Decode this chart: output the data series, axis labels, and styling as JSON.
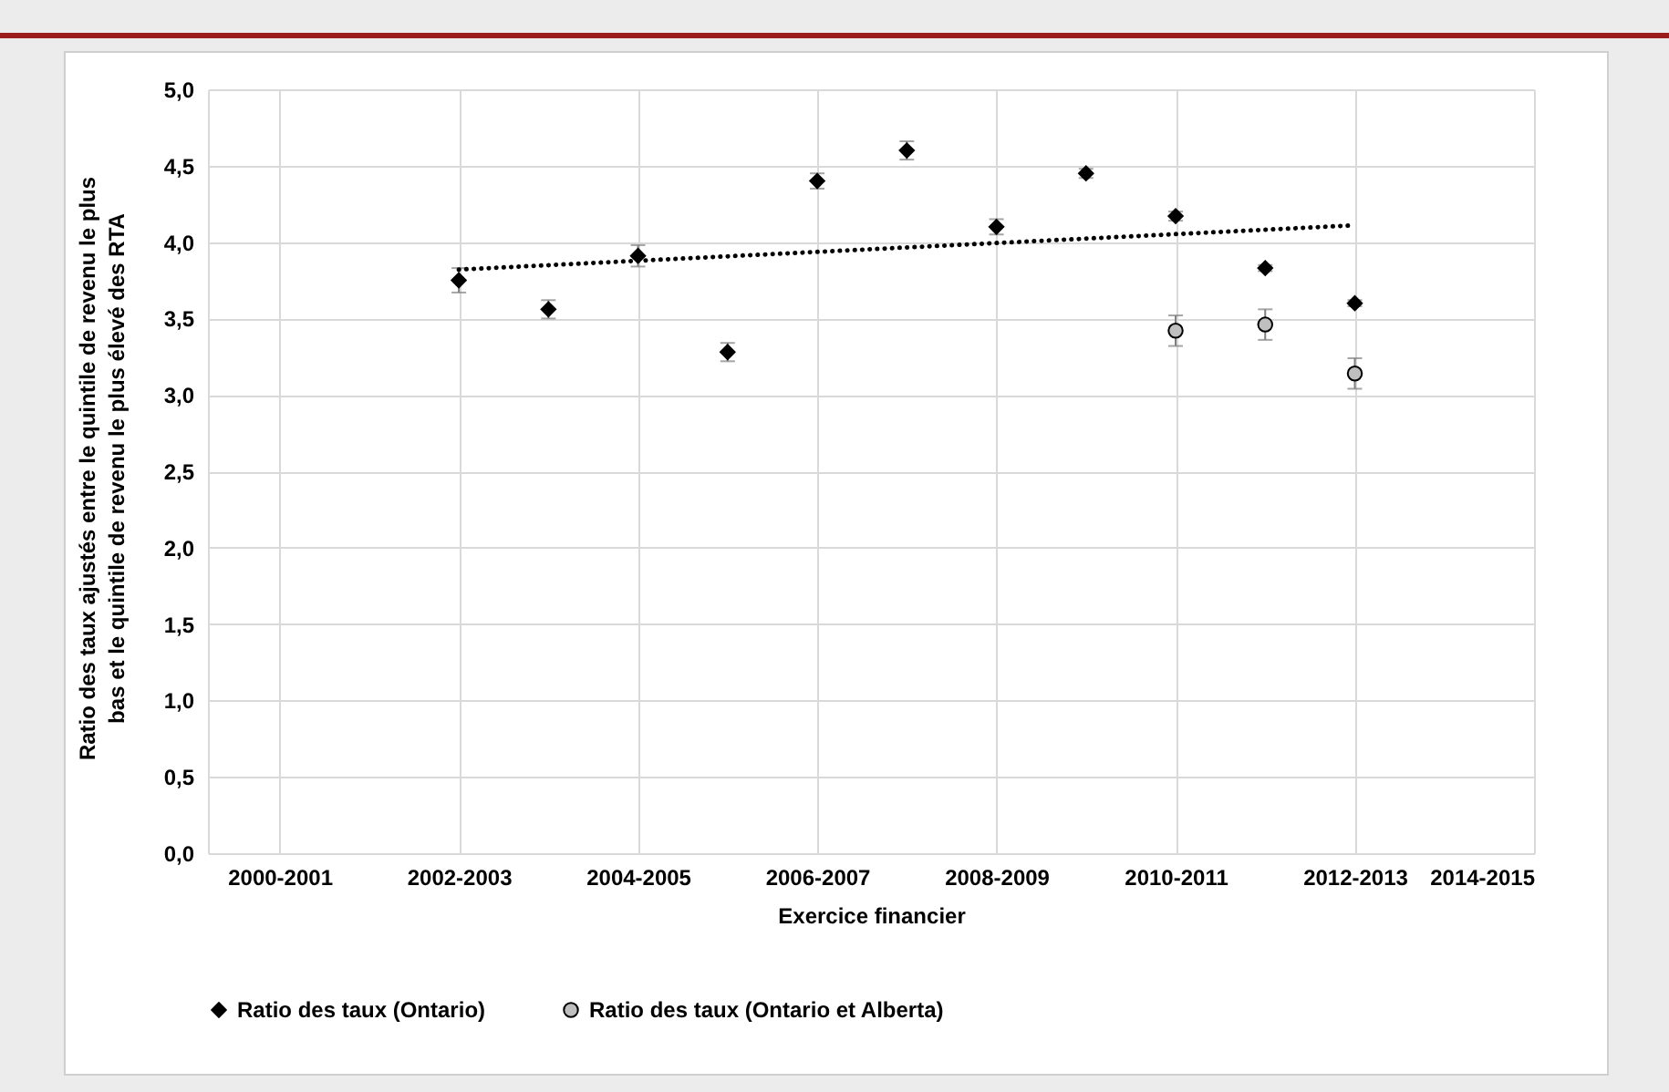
{
  "chart_data": {
    "type": "scatter",
    "xlabel": "Exercice financier",
    "ylabel": "Ratio des taux ajustés entre le quintile de revenu le plus\nbas et le quintile de revenu le plus élevé des RTA",
    "categories": [
      "2000-2001",
      null,
      "2002-2003",
      null,
      "2004-2005",
      null,
      "2006-2007",
      null,
      "2008-2009",
      null,
      "2010-2011",
      null,
      "2012-2013",
      null,
      "2014-2015"
    ],
    "ylim": [
      0,
      5
    ],
    "yticks": [
      {
        "value": 0,
        "label": "0,0"
      },
      {
        "value": 0.5,
        "label": "0,5"
      },
      {
        "value": 1,
        "label": "1,0"
      },
      {
        "value": 1.5,
        "label": "1,5"
      },
      {
        "value": 2,
        "label": "2,0"
      },
      {
        "value": 2.5,
        "label": "2,5"
      },
      {
        "value": 3,
        "label": "3,0"
      },
      {
        "value": 3.5,
        "label": "3,5"
      },
      {
        "value": 4,
        "label": "4,0"
      },
      {
        "value": 4.5,
        "label": "4,5"
      },
      {
        "value": 5,
        "label": "5,0"
      }
    ],
    "grid": true,
    "legend": "bottom",
    "series": [
      {
        "name": "Ratio des taux (Ontario)",
        "marker": "diamond",
        "color": "#000000",
        "values": [
          null,
          null,
          3.75,
          3.56,
          3.91,
          3.28,
          4.4,
          4.6,
          4.1,
          4.45,
          4.17,
          3.83,
          3.6,
          null,
          null
        ],
        "errors": [
          null,
          null,
          0.08,
          0.06,
          0.07,
          0.06,
          0.05,
          0.06,
          0.05,
          0.03,
          0.03,
          0.02,
          0.02,
          null,
          null
        ]
      },
      {
        "name": "Ratio des taux (Ontario et Alberta)",
        "marker": "circle",
        "color": "#bfbfbf",
        "values": [
          null,
          null,
          null,
          null,
          null,
          null,
          null,
          null,
          null,
          null,
          3.42,
          3.46,
          3.14,
          null,
          null
        ],
        "errors": [
          null,
          null,
          null,
          null,
          null,
          null,
          null,
          null,
          null,
          null,
          0.1,
          0.1,
          0.1,
          null,
          null
        ]
      },
      {
        "type": "line",
        "line_style": "dotted",
        "marker": "none",
        "color": "#000000",
        "x": [
          "2002-2003",
          "2012-2013"
        ],
        "values": [
          3.82,
          4.11
        ]
      }
    ]
  }
}
